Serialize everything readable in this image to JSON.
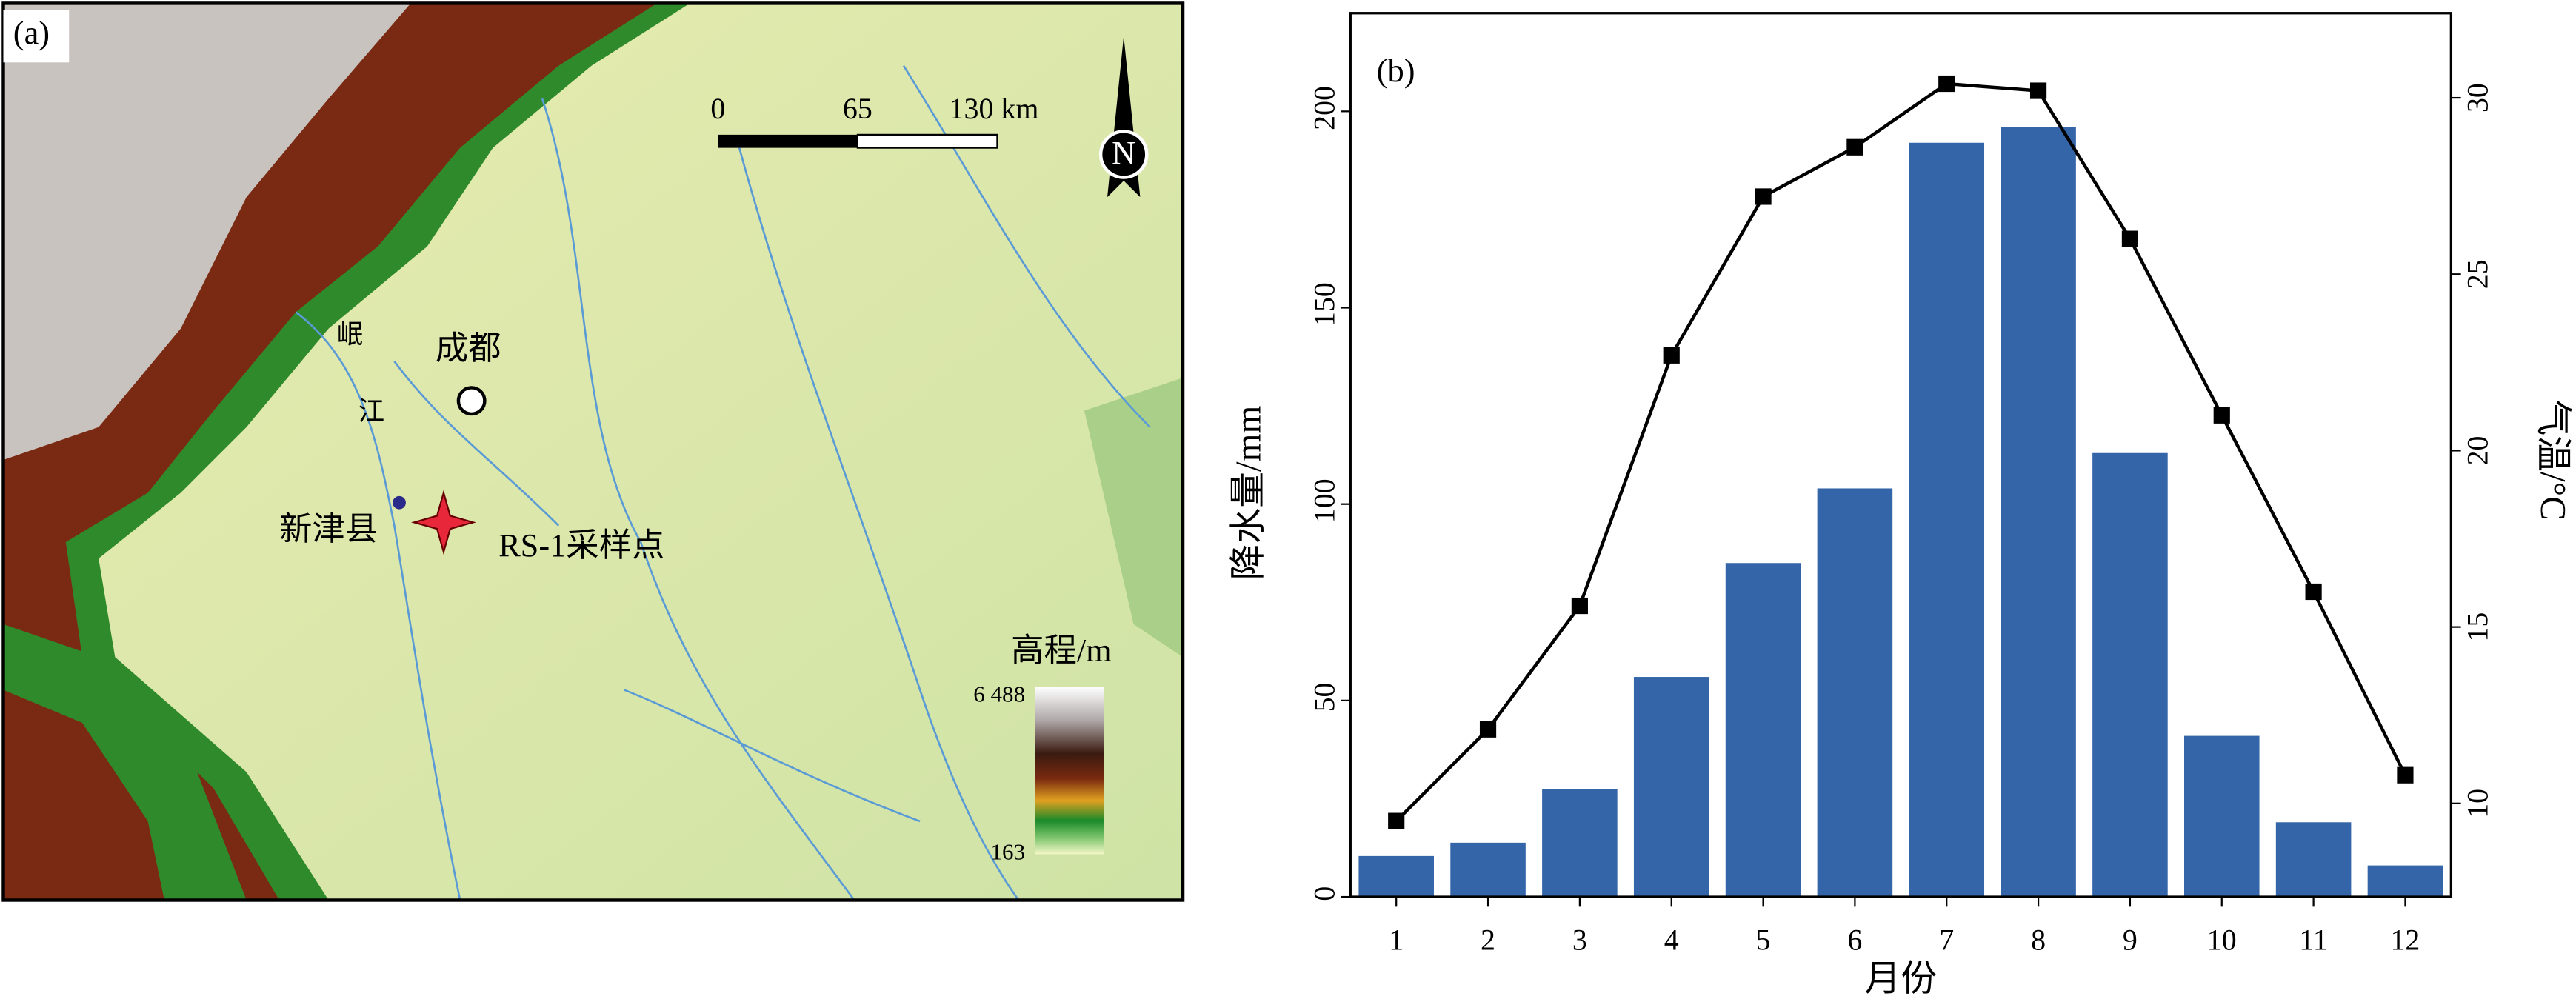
{
  "map": {
    "label": "(a)",
    "scale": [
      "0",
      "65",
      "130 km"
    ],
    "north": "N",
    "river": [
      "岷",
      "江"
    ],
    "city": "成都",
    "county": "新津县",
    "site": "RS-1采样点",
    "legend_title": "高程/m",
    "legend_max": "6 488",
    "legend_min": "163"
  },
  "chart_data": {
    "type": "bar_line",
    "label": "(b)",
    "xlabel": "月份",
    "ylabel": "降水量/mm",
    "y2label": "气温/°C",
    "categories": [
      "1",
      "2",
      "3",
      "4",
      "5",
      "6",
      "7",
      "8",
      "9",
      "10",
      "11",
      "12"
    ],
    "series": [
      {
        "type": "bar",
        "color": "#3465a8",
        "values": [
          10.4,
          13.8,
          27.5,
          56,
          85,
          104,
          192,
          196,
          113,
          41,
          19,
          8
        ]
      },
      {
        "type": "line",
        "axis": "y2",
        "color": "#000000",
        "values": [
          9.5,
          12.1,
          15.6,
          22.7,
          27.2,
          28.6,
          30.4,
          30.2,
          26.0,
          21.0,
          16.0,
          10.8
        ]
      }
    ],
    "ylim": [
      0,
      225
    ],
    "yticks": [
      0,
      50,
      100,
      150,
      200
    ],
    "y2lim": [
      7.35,
      32.4
    ],
    "y2ticks": [
      10,
      15,
      20,
      25,
      30
    ]
  }
}
